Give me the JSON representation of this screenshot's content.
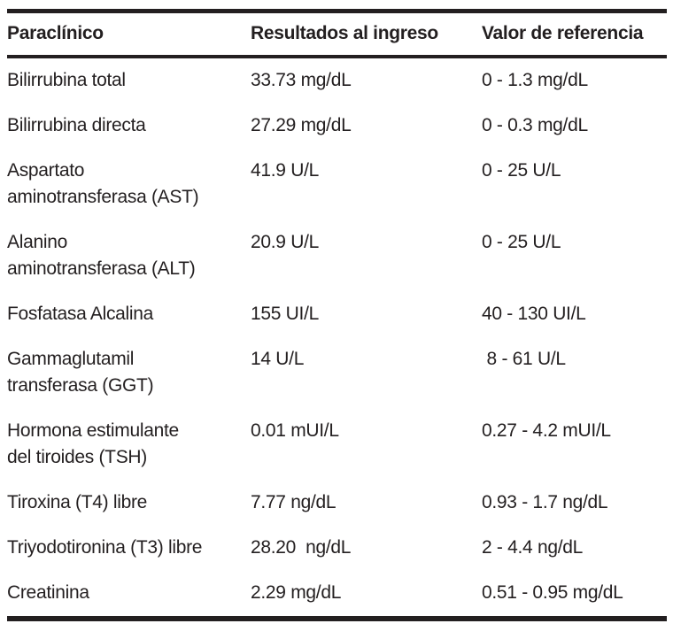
{
  "colors": {
    "text": "#231f20",
    "rule": "#231f20",
    "background": "#ffffff"
  },
  "table": {
    "columns": [
      "Paraclínico",
      "Resultados al ingreso",
      "Valor de referencia"
    ],
    "rows": [
      {
        "param": "Bilirrubina total",
        "result": "33.73 mg/dL",
        "reference": "0 - 1.3 mg/dL"
      },
      {
        "param": "Bilirrubina directa",
        "result": "27.29 mg/dL",
        "reference": "0 - 0.3 mg/dL"
      },
      {
        "param": "Aspartato\naminotransferasa (AST)",
        "result": "41.9 U/L",
        "reference": "0 - 25 U/L"
      },
      {
        "param": "Alanino\naminotransferasa (ALT)",
        "result": "20.9 U/L",
        "reference": "0 - 25 U/L"
      },
      {
        "param": "Fosfatasa Alcalina",
        "result": "155 UI/L",
        "reference": "40 - 130 UI/L"
      },
      {
        "param": "Gammaglutamil\ntransferasa (GGT)",
        "result": "14 U/L",
        "reference": " 8 - 61 U/L"
      },
      {
        "param": "Hormona estimulante\ndel tiroides (TSH)",
        "result": "0.01 mUI/L",
        "reference": "0.27 - 4.2 mUI/L"
      },
      {
        "param": "Tiroxina (T4) libre",
        "result": "7.77 ng/dL",
        "reference": "0.93 - 1.7 ng/dL"
      },
      {
        "param": "Triyodotironina (T3) libre",
        "result": "28.20  ng/dL",
        "reference": "2 - 4.4 ng/dL"
      },
      {
        "param": "Creatinina",
        "result": "2.29 mg/dL",
        "reference": "0.51 - 0.95 mg/dL"
      }
    ]
  }
}
